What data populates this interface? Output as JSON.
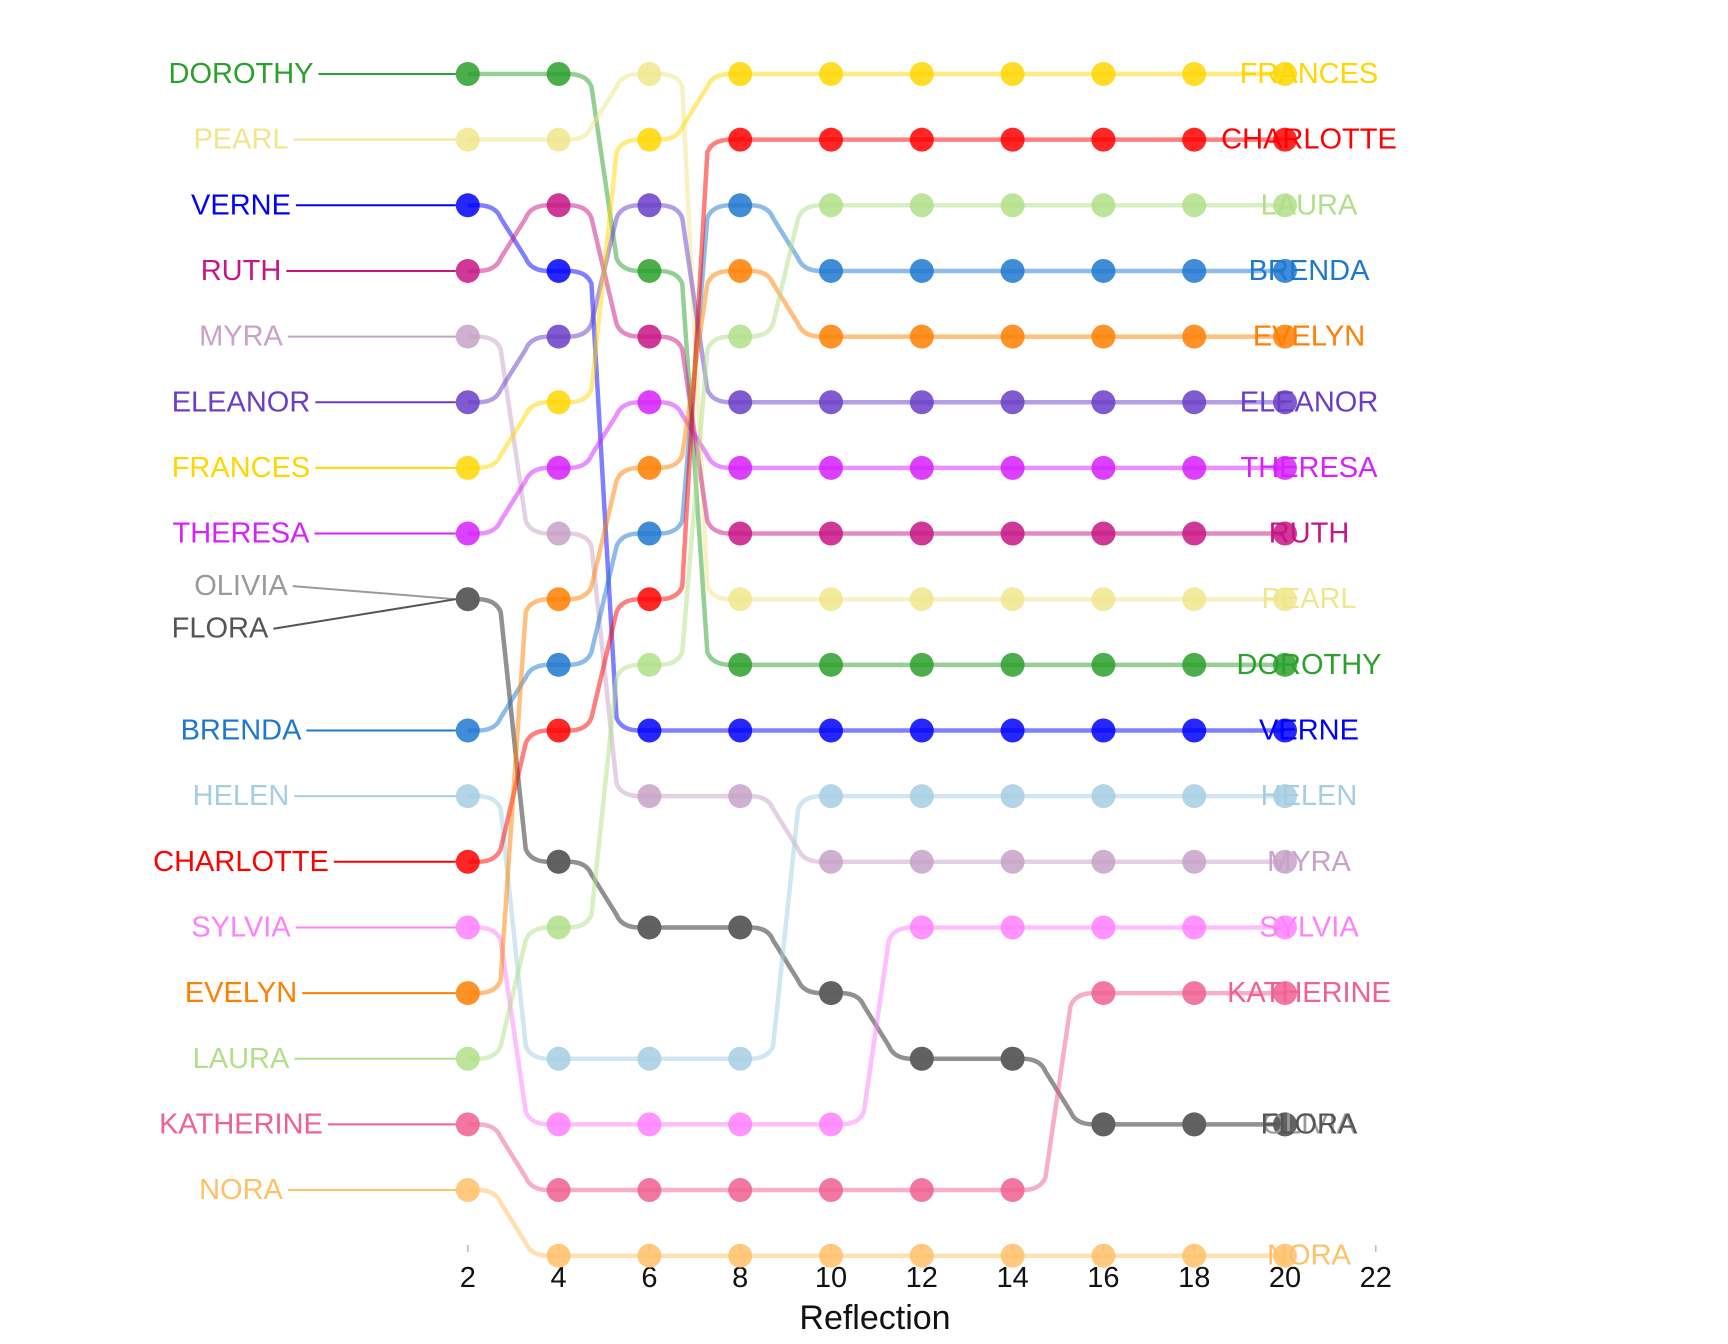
{
  "chart_data": {
    "type": "bump",
    "xlabel": "Reflection",
    "x_ticks": [
      2,
      4,
      6,
      8,
      10,
      12,
      14,
      16,
      18,
      20,
      22
    ],
    "xlim": [
      0,
      24
    ],
    "x": [
      2,
      4,
      6,
      8,
      10,
      12,
      14,
      16,
      18,
      20
    ],
    "y_reversed": true,
    "grid": false,
    "series": [
      {
        "name": "DOROTHY",
        "color": "#2ca02c",
        "ranks": [
          1,
          1,
          4,
          10,
          10,
          10,
          10,
          10,
          10,
          10
        ]
      },
      {
        "name": "PEARL",
        "color": "#f0e68c",
        "ranks": [
          2,
          2,
          1,
          9,
          9,
          9,
          9,
          9,
          9,
          9
        ]
      },
      {
        "name": "VERNE",
        "color": "#0000ff",
        "ranks": [
          3,
          4,
          11,
          11,
          11,
          11,
          11,
          11,
          11,
          11
        ]
      },
      {
        "name": "RUTH",
        "color": "#c71585",
        "ranks": [
          4,
          3,
          5,
          8,
          8,
          8,
          8,
          8,
          8,
          8
        ]
      },
      {
        "name": "MYRA",
        "color": "#c8a2c8",
        "ranks": [
          5,
          8,
          12,
          12,
          13,
          13,
          13,
          13,
          13,
          13
        ]
      },
      {
        "name": "ELEANOR",
        "color": "#6a3dc8",
        "ranks": [
          6,
          5,
          3,
          6,
          6,
          6,
          6,
          6,
          6,
          6
        ]
      },
      {
        "name": "FRANCES",
        "color": "#ffd700",
        "ranks": [
          7,
          6,
          2,
          1,
          1,
          1,
          1,
          1,
          1,
          1
        ]
      },
      {
        "name": "THERESA",
        "color": "#d620ff",
        "ranks": [
          8,
          7,
          6,
          7,
          7,
          7,
          7,
          7,
          7,
          7
        ]
      },
      {
        "name": "OLIVIA",
        "color": "#9a9a9a",
        "ranks": [
          9,
          13,
          14,
          14,
          15,
          16,
          16,
          17,
          17,
          17
        ]
      },
      {
        "name": "FLORA",
        "color": "#555555",
        "ranks": [
          9,
          13,
          14,
          14,
          15,
          16,
          16,
          17,
          17,
          17
        ]
      },
      {
        "name": "BRENDA",
        "color": "#1f78d0",
        "ranks": [
          11,
          10,
          8,
          3,
          4,
          4,
          4,
          4,
          4,
          4
        ]
      },
      {
        "name": "HELEN",
        "color": "#a6cee3",
        "ranks": [
          12,
          16,
          16,
          16,
          12,
          12,
          12,
          12,
          12,
          12
        ]
      },
      {
        "name": "CHARLOTTE",
        "color": "#ff0000",
        "ranks": [
          13,
          11,
          9,
          2,
          2,
          2,
          2,
          2,
          2,
          2
        ]
      },
      {
        "name": "SYLVIA",
        "color": "#ff80ff",
        "ranks": [
          14,
          17,
          17,
          17,
          17,
          14,
          14,
          14,
          14,
          14
        ]
      },
      {
        "name": "EVELYN",
        "color": "#ff7f00",
        "ranks": [
          15,
          9,
          7,
          4,
          5,
          5,
          5,
          5,
          5,
          5
        ]
      },
      {
        "name": "LAURA",
        "color": "#b2df8a",
        "ranks": [
          16,
          14,
          10,
          5,
          3,
          3,
          3,
          3,
          3,
          3
        ]
      },
      {
        "name": "KATHERINE",
        "color": "#f06090",
        "ranks": [
          17,
          18,
          18,
          18,
          18,
          18,
          18,
          15,
          15,
          15
        ]
      },
      {
        "name": "NORA",
        "color": "#ffc168",
        "ranks": [
          18,
          19,
          19,
          19,
          19,
          19,
          19,
          19,
          19,
          19
        ]
      }
    ],
    "left_labels": [
      "DOROTHY",
      "PEARL",
      "VERNE",
      "RUTH",
      "MYRA",
      "ELEANOR",
      "FRANCES",
      "THERESA",
      "OLIVIA",
      "FLORA",
      "BRENDA",
      "HELEN",
      "CHARLOTTE",
      "SYLVIA",
      "EVELYN",
      "LAURA",
      "KATHERINE",
      "NORA"
    ],
    "right_labels": [
      "FRANCES",
      "CHARLOTTE",
      "LAURA",
      "BRENDA",
      "EVELYN",
      "ELEANOR",
      "THERESA",
      "RUTH",
      "PEARL",
      "DOROTHY",
      "VERNE",
      "HELEN",
      "MYRA",
      "SYLVIA",
      "KATHERINE",
      "OLIVIA",
      "FLORA",
      "NORA"
    ]
  }
}
